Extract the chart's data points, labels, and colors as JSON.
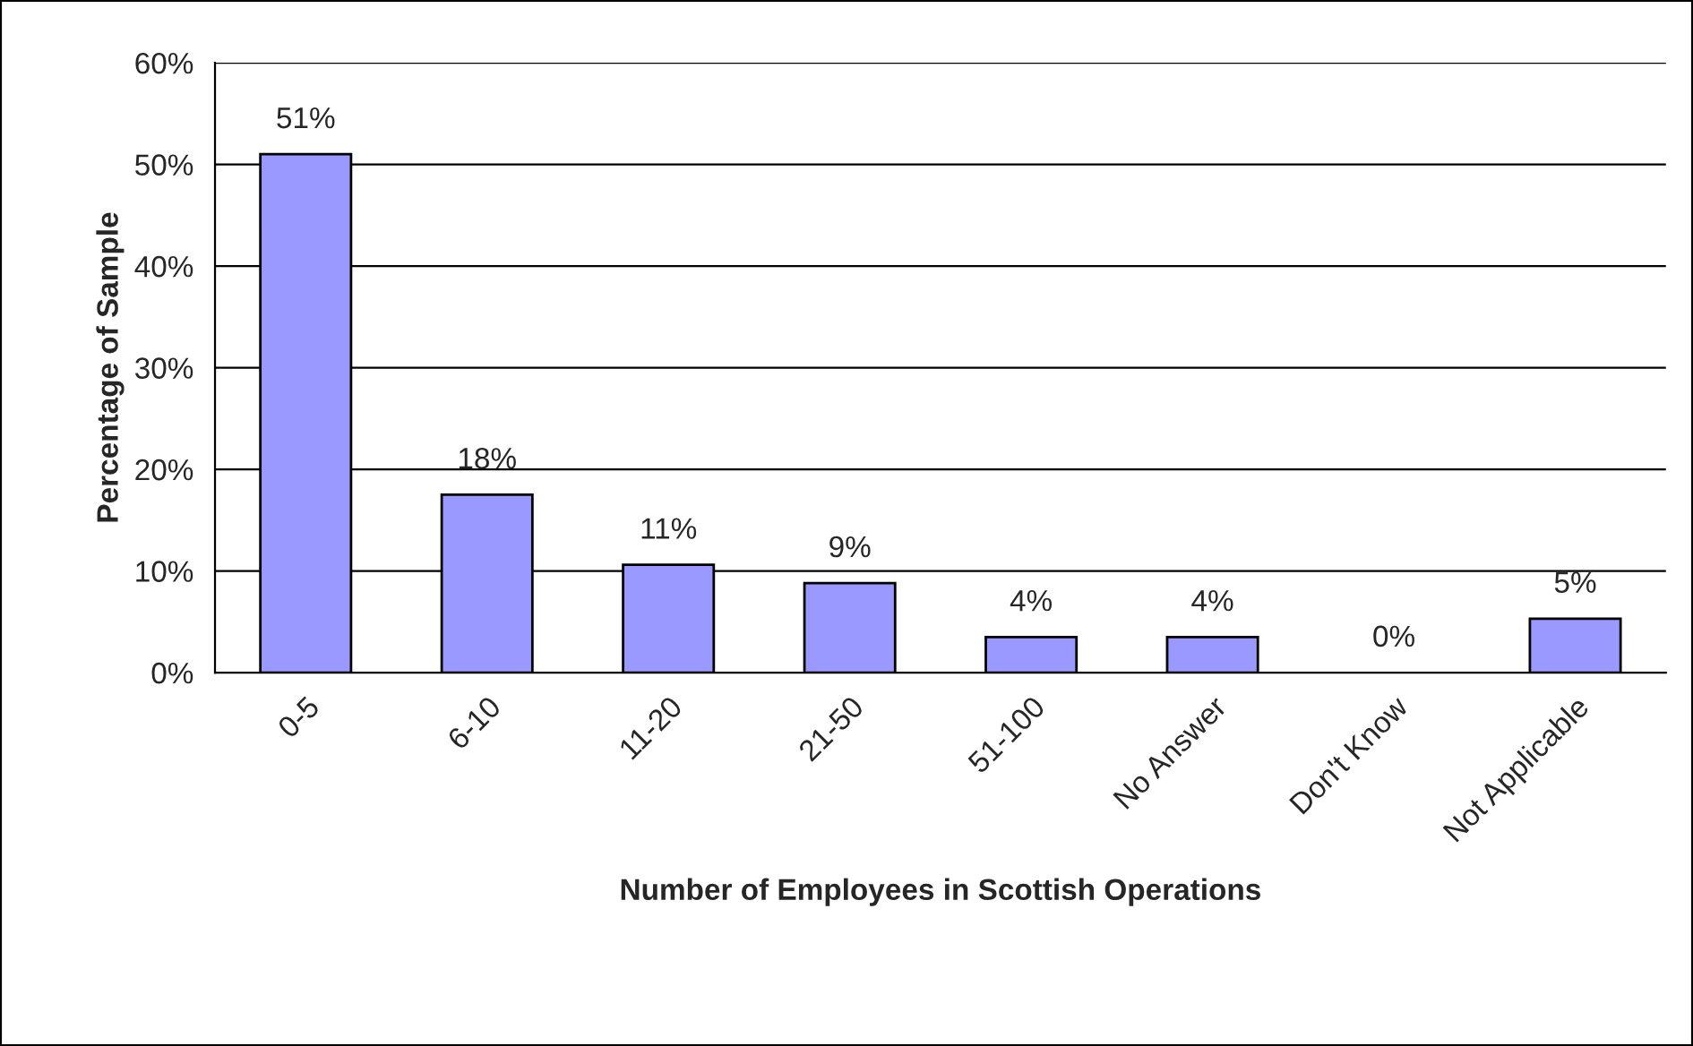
{
  "chart_data": {
    "type": "bar",
    "categories": [
      "0-5",
      "6-10",
      "11-20",
      "21-50",
      "51-100",
      "No Answer",
      "Don't Know",
      "Not Applicable"
    ],
    "values": [
      51,
      17.5,
      10.6,
      8.8,
      3.5,
      3.5,
      0,
      5.3
    ],
    "value_labels": [
      "51%",
      "18%",
      "11%",
      "9%",
      "4%",
      "4%",
      "0%",
      "5%"
    ],
    "color": "#9999ff",
    "xlabel": "Number of Employees in Scottish Operations",
    "ylabel": "Percentage of Sample",
    "ylim": [
      0,
      60
    ],
    "yticks": [
      {
        "value": 0,
        "label": "0%"
      },
      {
        "value": 10,
        "label": "10%"
      },
      {
        "value": 20,
        "label": "20%"
      },
      {
        "value": 30,
        "label": "30%"
      },
      {
        "value": 40,
        "label": "40%"
      },
      {
        "value": 50,
        "label": "50%"
      },
      {
        "value": 60,
        "label": "60%"
      }
    ],
    "grid": "y",
    "legend": false
  }
}
